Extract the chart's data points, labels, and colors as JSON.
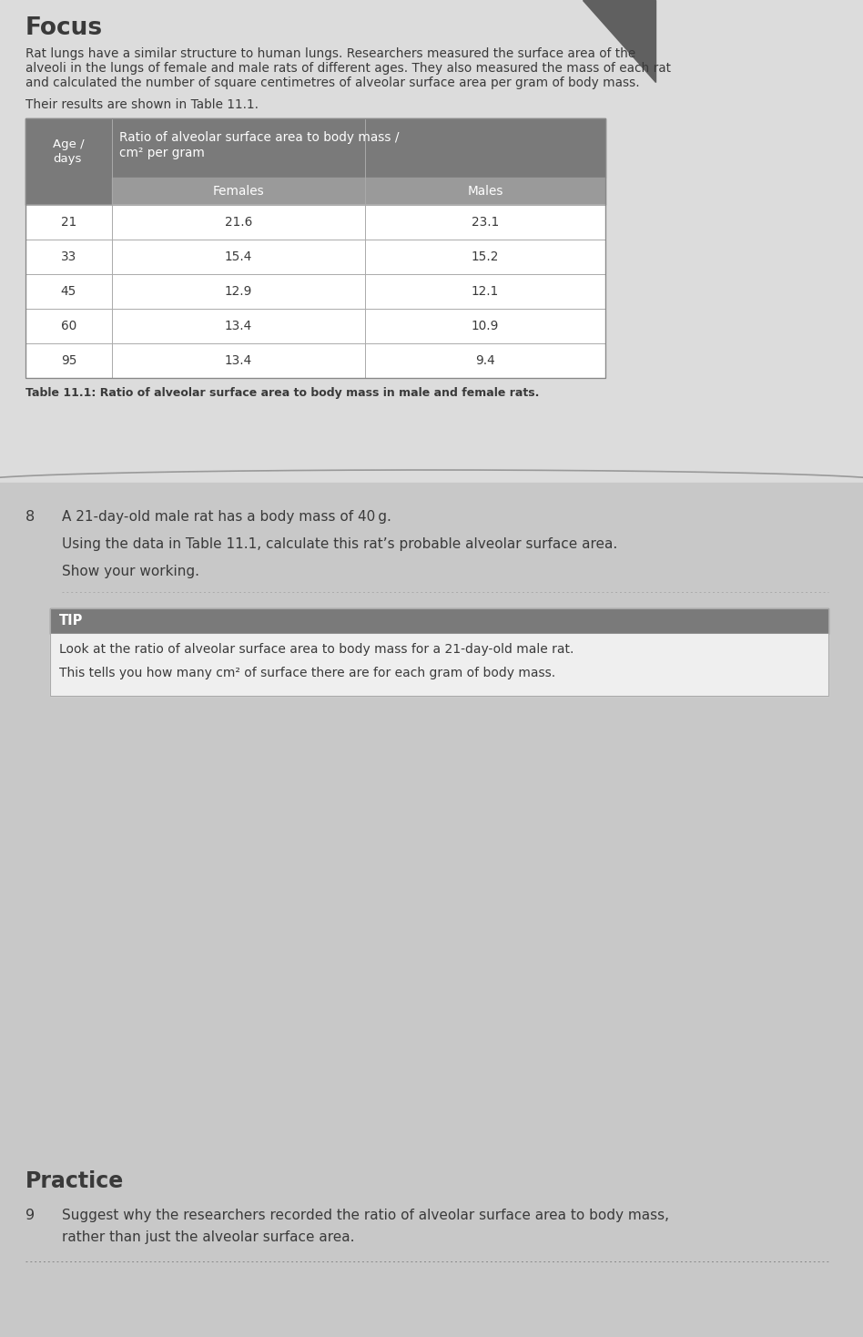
{
  "focus_title": "Focus",
  "focus_text_line1": "Rat lungs have a similar structure to human lungs. Researchers measured the surface area of the",
  "focus_text_line2": "alveoli in the lungs of female and male rats of different ages. They also measured the mass of each rat",
  "focus_text_line3": "and calculated the number of square centimetres of alveolar surface area per gram of body mass.",
  "focus_text_line4": "Their results are shown in Table 11.1.",
  "table_caption": "Table 11.1: Ratio of alveolar surface area to body mass in male and female rats.",
  "table_header_age": "Age /\ndays",
  "table_header_ratio": "Ratio of alveolar surface area to body mass /\ncm² per gram",
  "table_subheader_females": "Females",
  "table_subheader_males": "Males",
  "table_ages": [
    21,
    33,
    45,
    60,
    95
  ],
  "table_females": [
    "21.6",
    "15.4",
    "12.9",
    "13.4",
    "13.4"
  ],
  "table_males": [
    "23.1",
    "15.2",
    "12.1",
    "10.9",
    "9.4"
  ],
  "q8_number": "8",
  "q8_line1": "A 21-day-old male rat has a body mass of 40 g.",
  "q8_line2": "Using the data in Table 11.1, calculate this rat’s probable alveolar surface area.",
  "q8_line3": "Show your working.",
  "tip_header": "TIP",
  "tip_line1": "Look at the ratio of alveolar surface area to body mass for a 21-day-old male rat.",
  "tip_line2": "This tells you how many cm² of surface there are for each gram of body mass.",
  "practice_title": "Practice",
  "q9_number": "9",
  "q9_line1": "Suggest why the researchers recorded the ratio of alveolar surface area to body mass,",
  "q9_line2": "rather than just the alveolar surface area.",
  "bg_top": "#dcdcdc",
  "bg_bottom": "#c8c8c8",
  "bg_spine": "#b0b0b0",
  "table_header_bg": "#7a7a7a",
  "table_subheader_bg": "#9a9a9a",
  "table_cell_bg": "#f5f5f5",
  "table_border": "#aaaaaa",
  "tip_header_bg": "#7a7a7a",
  "tip_body_bg": "#efefef",
  "tip_border": "#aaaaaa",
  "text_white": "#ffffff",
  "text_dark": "#3a3a3a",
  "text_caption": "#3a3a3a",
  "dotted_line_color": "#888888",
  "separator_color": "#999999"
}
